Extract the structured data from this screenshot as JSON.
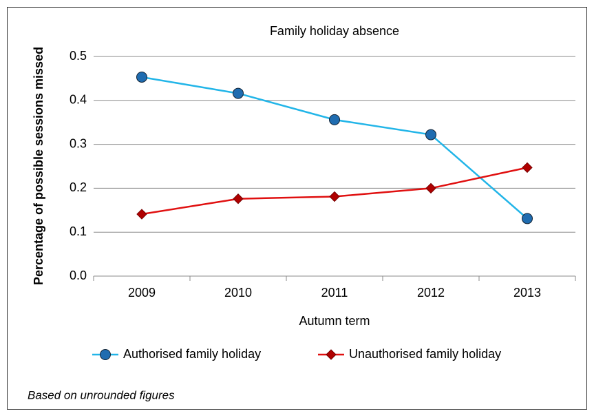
{
  "chart_data": {
    "type": "line",
    "title": "Family holiday absence",
    "x_label": "Autumn term",
    "y_label": "Percentage of possible sessions missed",
    "categories": [
      "2009",
      "2010",
      "2011",
      "2012",
      "2013"
    ],
    "series": [
      {
        "name": "Authorised family holiday",
        "color": "#22b5e8",
        "marker_color": "#1f6cb0",
        "marker": "circle",
        "values": [
          0.453,
          0.416,
          0.356,
          0.322,
          0.131
        ]
      },
      {
        "name": "Unauthorised family holiday",
        "color": "#e01010",
        "marker_color": "#b00000",
        "marker": "diamond",
        "values": [
          0.141,
          0.176,
          0.181,
          0.2,
          0.247
        ]
      }
    ],
    "ylim": [
      0,
      0.5
    ],
    "yticks": [
      {
        "value": 0,
        "label": "0.0"
      },
      0.1,
      0.2,
      0.3,
      0.4,
      0.5
    ],
    "grid": true,
    "legend": "bottom",
    "footnote": "Based on unrounded figures"
  }
}
